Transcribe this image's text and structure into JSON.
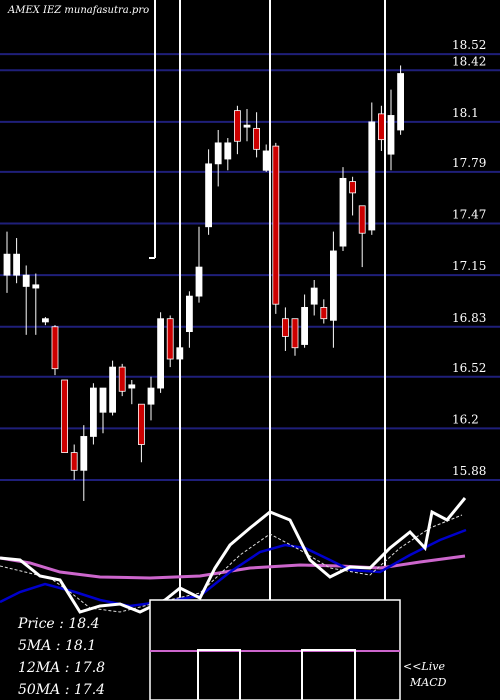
{
  "chart_data": {
    "type": "candlestick",
    "title": "AMEX  IEZ munafasutra.pro",
    "y_ticks": [
      18.52,
      18.42,
      18.1,
      17.79,
      17.47,
      17.15,
      16.83,
      16.52,
      16.2,
      15.88
    ],
    "ylim": [
      15.8,
      18.6
    ],
    "candles": [
      {
        "o": 17.15,
        "c": 17.28,
        "h": 17.42,
        "l": 17.04,
        "color": "white"
      },
      {
        "o": 17.28,
        "c": 17.15,
        "h": 17.38,
        "l": 17.1,
        "color": "white"
      },
      {
        "o": 17.15,
        "c": 17.08,
        "h": 17.21,
        "l": 16.78,
        "color": "white"
      },
      {
        "o": 17.07,
        "c": 17.09,
        "h": 17.16,
        "l": 16.78,
        "color": "white"
      },
      {
        "o": 16.88,
        "c": 16.86,
        "h": 16.89,
        "l": 16.84,
        "color": "white"
      },
      {
        "o": 16.83,
        "c": 16.57,
        "h": 16.84,
        "l": 16.53,
        "color": "red"
      },
      {
        "o": 16.5,
        "c": 16.05,
        "h": 16.5,
        "l": 16.05,
        "color": "red"
      },
      {
        "o": 16.05,
        "c": 15.94,
        "h": 16.1,
        "l": 15.88,
        "color": "red"
      },
      {
        "o": 15.94,
        "c": 16.15,
        "h": 16.22,
        "l": 15.75,
        "color": "white"
      },
      {
        "o": 16.15,
        "c": 16.45,
        "h": 16.48,
        "l": 16.1,
        "color": "white"
      },
      {
        "o": 16.45,
        "c": 16.3,
        "h": 16.45,
        "l": 16.17,
        "color": "white"
      },
      {
        "o": 16.3,
        "c": 16.58,
        "h": 16.62,
        "l": 16.28,
        "color": "white"
      },
      {
        "o": 16.58,
        "c": 16.43,
        "h": 16.6,
        "l": 16.4,
        "color": "red"
      },
      {
        "o": 16.45,
        "c": 16.47,
        "h": 16.5,
        "l": 16.35,
        "color": "white"
      },
      {
        "o": 16.35,
        "c": 16.1,
        "h": 16.35,
        "l": 15.99,
        "color": "red"
      },
      {
        "o": 16.35,
        "c": 16.45,
        "h": 16.52,
        "l": 16.25,
        "color": "white"
      },
      {
        "o": 16.45,
        "c": 16.88,
        "h": 16.92,
        "l": 16.42,
        "color": "white"
      },
      {
        "o": 16.88,
        "c": 16.63,
        "h": 16.9,
        "l": 16.58,
        "color": "red"
      },
      {
        "o": 16.63,
        "c": 16.7,
        "h": 16.8,
        "l": 16.58,
        "color": "white"
      },
      {
        "o": 16.8,
        "c": 17.02,
        "h": 17.05,
        "l": 16.7,
        "color": "white"
      },
      {
        "o": 17.02,
        "c": 17.2,
        "h": 17.45,
        "l": 16.98,
        "color": "white"
      },
      {
        "o": 17.45,
        "c": 17.84,
        "h": 17.93,
        "l": 17.4,
        "color": "white"
      },
      {
        "o": 17.84,
        "c": 17.97,
        "h": 18.05,
        "l": 17.7,
        "color": "white"
      },
      {
        "o": 17.97,
        "c": 17.87,
        "h": 18.0,
        "l": 17.8,
        "color": "white"
      },
      {
        "o": 17.98,
        "c": 18.17,
        "h": 18.2,
        "l": 17.9,
        "color": "red"
      },
      {
        "o": 18.08,
        "c": 18.07,
        "h": 18.18,
        "l": 17.98,
        "color": "white"
      },
      {
        "o": 18.06,
        "c": 17.93,
        "h": 18.16,
        "l": 17.88,
        "color": "red"
      },
      {
        "o": 17.92,
        "c": 17.8,
        "h": 17.96,
        "l": 17.79,
        "color": "white"
      },
      {
        "o": 17.95,
        "c": 16.97,
        "h": 17.97,
        "l": 16.91,
        "color": "red"
      },
      {
        "o": 16.88,
        "c": 16.77,
        "h": 16.95,
        "l": 16.68,
        "color": "red"
      },
      {
        "o": 16.88,
        "c": 16.7,
        "h": 16.88,
        "l": 16.65,
        "color": "red"
      },
      {
        "o": 16.72,
        "c": 16.95,
        "h": 17.03,
        "l": 16.7,
        "color": "white"
      },
      {
        "o": 16.97,
        "c": 17.07,
        "h": 17.12,
        "l": 16.9,
        "color": "white"
      },
      {
        "o": 16.95,
        "c": 16.88,
        "h": 17.0,
        "l": 16.85,
        "color": "red"
      },
      {
        "o": 16.87,
        "c": 17.3,
        "h": 17.42,
        "l": 16.7,
        "color": "white"
      },
      {
        "o": 17.33,
        "c": 17.75,
        "h": 17.82,
        "l": 17.3,
        "color": "white"
      },
      {
        "o": 17.73,
        "c": 17.66,
        "h": 17.76,
        "l": 17.52,
        "color": "red"
      },
      {
        "o": 17.58,
        "c": 17.41,
        "h": 17.58,
        "l": 17.2,
        "color": "red"
      },
      {
        "o": 17.43,
        "c": 18.1,
        "h": 18.22,
        "l": 17.4,
        "color": "white"
      },
      {
        "o": 18.15,
        "c": 17.99,
        "h": 18.2,
        "l": 17.92,
        "color": "red"
      },
      {
        "o": 17.9,
        "c": 18.14,
        "h": 18.3,
        "l": 17.8,
        "color": "white"
      },
      {
        "o": 18.05,
        "c": 18.4,
        "h": 18.45,
        "l": 18.02,
        "color": "white"
      }
    ],
    "stats": [
      {
        "label": "Price",
        "value": "18.4"
      },
      {
        "label": "5MA",
        "value": "18.1"
      },
      {
        "label": "12MA",
        "value": "17.8"
      },
      {
        "label": "50MA",
        "value": "17.4"
      }
    ],
    "macd_label_1": "<<Live",
    "macd_label_2": "MACD",
    "colors": {
      "background": "#000000",
      "gridline": "#1f1f7a",
      "up_candle": "#ffffff",
      "down_candle": "#cc0000",
      "ma_short": "#ffffff",
      "ma_mid": "#0000cc",
      "ma_long": "#cc66cc",
      "macd_line": "#cc66cc"
    }
  }
}
